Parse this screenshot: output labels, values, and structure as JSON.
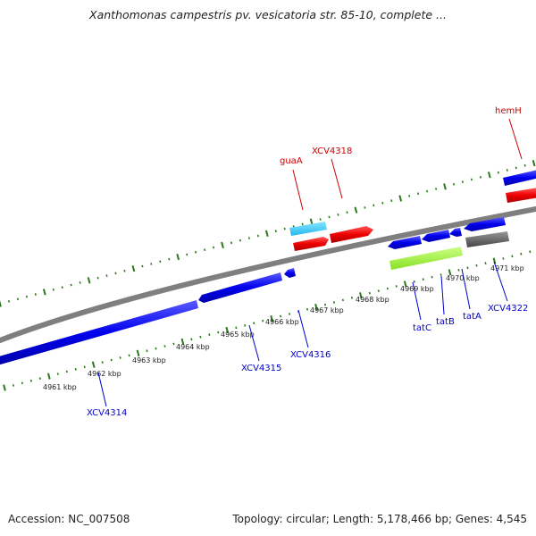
{
  "header": {
    "title": "Xanthomonas campestris pv. vesicatoria str. 85-10, complete ..."
  },
  "footer": {
    "accession": "Accession: NC_007508",
    "summary": "Topology: circular; Length: 5,178,466 bp; Genes: 4,545"
  },
  "ticks": [
    "4961 kbp",
    "4962 kbp",
    "4963 kbp",
    "4964 kbp",
    "4965 kbp",
    "4966 kbp",
    "4967 kbp",
    "4968 kbp",
    "4969 kbp",
    "4970 kbp",
    "4971 kbp"
  ],
  "genes_top": [
    {
      "label": "guaA",
      "color": "#cc0000"
    },
    {
      "label": "XCV4318",
      "color": "#cc0000"
    },
    {
      "label": "hemH",
      "color": "#cc0000"
    }
  ],
  "genes_bottom": [
    {
      "label": "XCV4314",
      "color": "#0000cc"
    },
    {
      "label": "XCV4315",
      "color": "#0000cc"
    },
    {
      "label": "XCV4316",
      "color": "#0000cc"
    },
    {
      "label": "tatC",
      "color": "#0000cc"
    },
    {
      "label": "tatB",
      "color": "#0000cc"
    },
    {
      "label": "tatA",
      "color": "#0000cc"
    },
    {
      "label": "XCV4322",
      "color": "#0000cc"
    }
  ],
  "colors": {
    "backbone": "#7f7f7f",
    "tick": "#2a7a1a",
    "gene_forward": "#ff0000",
    "gene_reverse": "#0000ff",
    "gene_cyan": "#33ccff",
    "gene_green": "#99ff33",
    "gene_gray": "#666666"
  }
}
